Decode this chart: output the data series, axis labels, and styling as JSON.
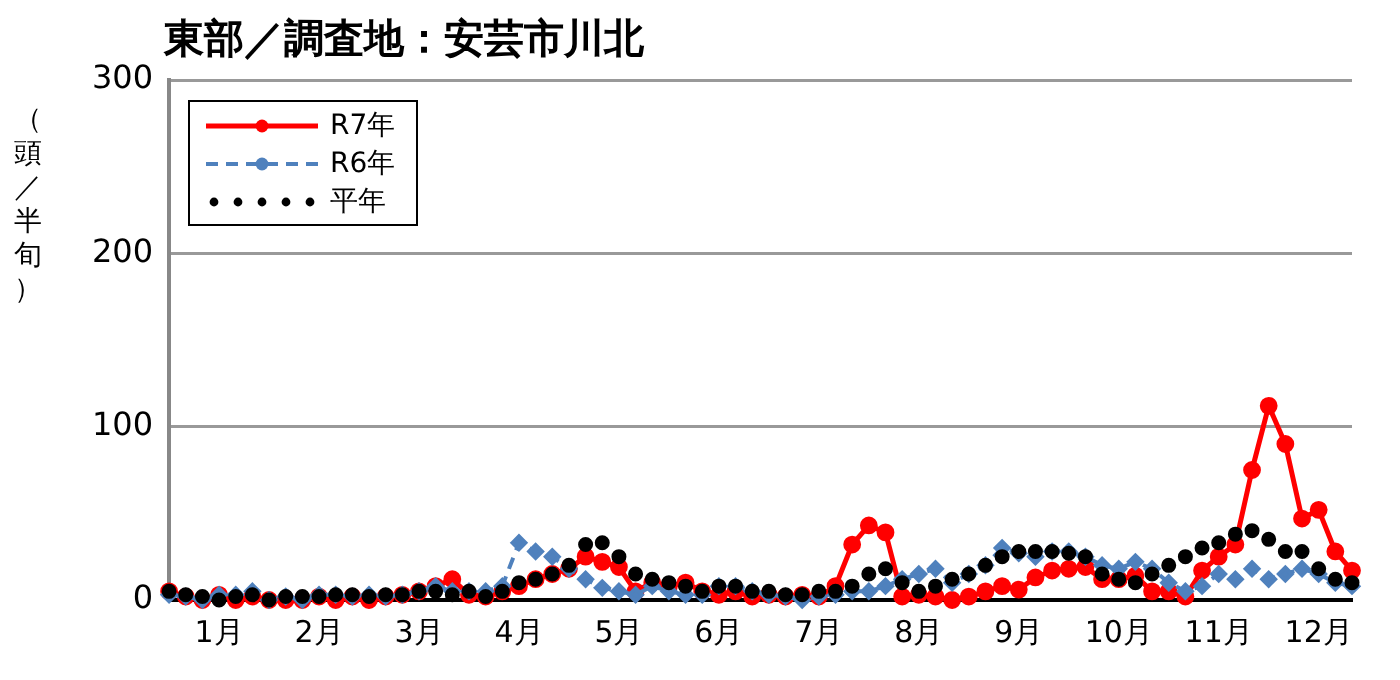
{
  "chart_data": {
    "type": "line",
    "title": "東部／調査地：安芸市川北",
    "ylabel": "（頭／半旬）",
    "categories": [
      null,
      null,
      null,
      "1月",
      null,
      null,
      null,
      null,
      null,
      "2月",
      null,
      null,
      null,
      null,
      null,
      "3月",
      null,
      null,
      null,
      null,
      null,
      "4月",
      null,
      null,
      null,
      null,
      null,
      "5月",
      null,
      null,
      null,
      null,
      null,
      "6月",
      null,
      null,
      null,
      null,
      null,
      "7月",
      null,
      null,
      null,
      null,
      null,
      "8月",
      null,
      null,
      null,
      null,
      null,
      "9月",
      null,
      null,
      null,
      null,
      null,
      "10月",
      null,
      null,
      null,
      null,
      null,
      "11月",
      null,
      null,
      null,
      null,
      null,
      "12月",
      null,
      null
    ],
    "series": [
      {
        "name": "R7年",
        "color": "#ff0000",
        "marker": "circle",
        "line_style": "solid",
        "values": [
          5,
          2,
          0,
          3,
          0,
          2,
          0,
          0,
          0,
          2,
          0,
          2,
          0,
          2,
          3,
          5,
          8,
          12,
          3,
          2,
          5,
          8,
          12,
          15,
          18,
          25,
          22,
          19,
          5,
          10,
          8,
          10,
          5,
          3,
          5,
          2,
          3,
          2,
          3,
          2,
          8,
          32,
          43,
          39,
          2,
          3,
          2,
          0,
          2,
          5,
          8,
          6,
          13,
          17,
          18,
          19,
          12,
          12,
          14,
          5,
          5,
          2,
          17,
          25,
          32,
          75,
          112,
          90,
          47,
          52,
          28,
          17
        ]
      },
      {
        "name": "R6年",
        "color": "#4f81bd",
        "marker": "diamond",
        "line_style": "dashed",
        "values": [
          3,
          2,
          0,
          3,
          3,
          5,
          0,
          2,
          0,
          3,
          3,
          2,
          3,
          2,
          3,
          5,
          8,
          5,
          5,
          5,
          8,
          33,
          28,
          25,
          18,
          12,
          7,
          5,
          3,
          8,
          5,
          3,
          3,
          8,
          8,
          5,
          3,
          2,
          0,
          2,
          3,
          5,
          5,
          8,
          12,
          15,
          18,
          10,
          15,
          20,
          30,
          27,
          25,
          28,
          28,
          25,
          20,
          18,
          22,
          18,
          10,
          5,
          8,
          15,
          12,
          18,
          12,
          15,
          18,
          15,
          10,
          8
        ]
      },
      {
        "name": "平年",
        "color": "#000000",
        "type": "scatter",
        "marker": "circle",
        "values": [
          5,
          3,
          2,
          0,
          2,
          3,
          0,
          2,
          2,
          2,
          3,
          3,
          2,
          3,
          3,
          5,
          5,
          3,
          5,
          2,
          5,
          10,
          12,
          15,
          20,
          32,
          33,
          25,
          15,
          12,
          10,
          8,
          5,
          8,
          8,
          5,
          5,
          3,
          3,
          5,
          5,
          8,
          15,
          18,
          10,
          5,
          8,
          12,
          15,
          20,
          25,
          28,
          28,
          28,
          27,
          25,
          15,
          12,
          10,
          15,
          20,
          25,
          30,
          33,
          38,
          40,
          35,
          28,
          28,
          18,
          12,
          10
        ]
      }
    ],
    "ylim": [
      0,
      300
    ],
    "yticks": [
      0,
      100,
      200,
      300
    ],
    "grid": "y",
    "legend": "top left"
  }
}
